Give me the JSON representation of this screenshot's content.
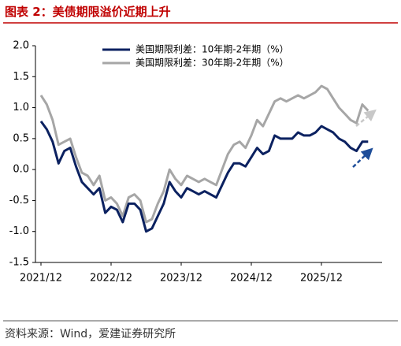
{
  "chart_data": {
    "type": "line",
    "title": "图表 2：美债期限溢价近期上升",
    "source": "资料来源：Wind，爱建证券研究所",
    "x": [
      "2021/12",
      "2022/01",
      "2022/02",
      "2022/03",
      "2022/04",
      "2022/05",
      "2022/06",
      "2022/07",
      "2022/08",
      "2022/09",
      "2022/10",
      "2022/11",
      "2022/12",
      "2023/01",
      "2023/02",
      "2023/03",
      "2023/04",
      "2023/05",
      "2023/06",
      "2023/07",
      "2023/08",
      "2023/09",
      "2023/10",
      "2023/11",
      "2023/12",
      "2024/01",
      "2024/02",
      "2024/03",
      "2024/04",
      "2024/05",
      "2024/06",
      "2024/07",
      "2024/08",
      "2024/09",
      "2024/10",
      "2024/11",
      "2024/12",
      "2025/01",
      "2025/02",
      "2025/03",
      "2025/04",
      "2025/05",
      "2025/06",
      "2025/07",
      "2025/08",
      "2025/09",
      "2025/10",
      "2025/11",
      "2025/12",
      "2026/01",
      "2026/02",
      "2026/03",
      "2026/04",
      "2026/05",
      "2026/06",
      "2026/07",
      "2026/08"
    ],
    "xticks": [
      "2021/12",
      "2022/12",
      "2023/12",
      "2024/12",
      "2025/12"
    ],
    "series": [
      {
        "name": "美国期限利差：10年期-2年期（%）",
        "color": "#0b2160",
        "values": [
          0.78,
          0.65,
          0.45,
          0.1,
          0.3,
          0.35,
          0.05,
          -0.2,
          -0.3,
          -0.4,
          -0.3,
          -0.7,
          -0.6,
          -0.65,
          -0.85,
          -0.55,
          -0.55,
          -0.65,
          -1.0,
          -0.95,
          -0.75,
          -0.55,
          -0.2,
          -0.35,
          -0.45,
          -0.3,
          -0.35,
          -0.4,
          -0.35,
          -0.4,
          -0.45,
          -0.25,
          -0.05,
          0.1,
          0.1,
          0.05,
          0.2,
          0.35,
          0.25,
          0.3,
          0.55,
          0.5,
          0.5,
          0.5,
          0.6,
          0.55,
          0.55,
          0.6,
          0.7,
          0.65,
          0.6,
          0.5,
          0.45,
          0.35,
          0.3,
          0.45,
          0.45
        ]
      },
      {
        "name": "美国期限利差：30年期-2年期（%）",
        "color": "#a6a6a6",
        "values": [
          1.2,
          1.05,
          0.8,
          0.4,
          0.45,
          0.5,
          0.2,
          -0.05,
          -0.1,
          -0.25,
          -0.1,
          -0.5,
          -0.45,
          -0.55,
          -0.75,
          -0.45,
          -0.4,
          -0.5,
          -0.85,
          -0.8,
          -0.55,
          -0.35,
          0.0,
          -0.15,
          -0.25,
          -0.1,
          -0.15,
          -0.2,
          -0.15,
          -0.2,
          -0.25,
          0.0,
          0.25,
          0.4,
          0.45,
          0.35,
          0.55,
          0.8,
          0.7,
          0.9,
          1.1,
          1.15,
          1.1,
          1.15,
          1.2,
          1.15,
          1.2,
          1.25,
          1.35,
          1.3,
          1.15,
          1.0,
          0.9,
          0.8,
          0.75,
          1.05,
          0.95
        ]
      }
    ],
    "ylim": [
      -1.5,
      2.0
    ],
    "yticks": [
      {
        "value": 2.0,
        "label": "2.0"
      },
      {
        "value": 1.5,
        "label": "1.5"
      },
      {
        "value": 1.0,
        "label": "1.0"
      },
      {
        "value": 0.5,
        "label": "0.5"
      },
      {
        "value": 0.0,
        "label": "0.0"
      },
      {
        "value": -0.5,
        "label": "-0.5"
      },
      {
        "value": -1.0,
        "label": "-1.0"
      },
      {
        "value": -1.5,
        "label": "-1.5"
      }
    ]
  }
}
